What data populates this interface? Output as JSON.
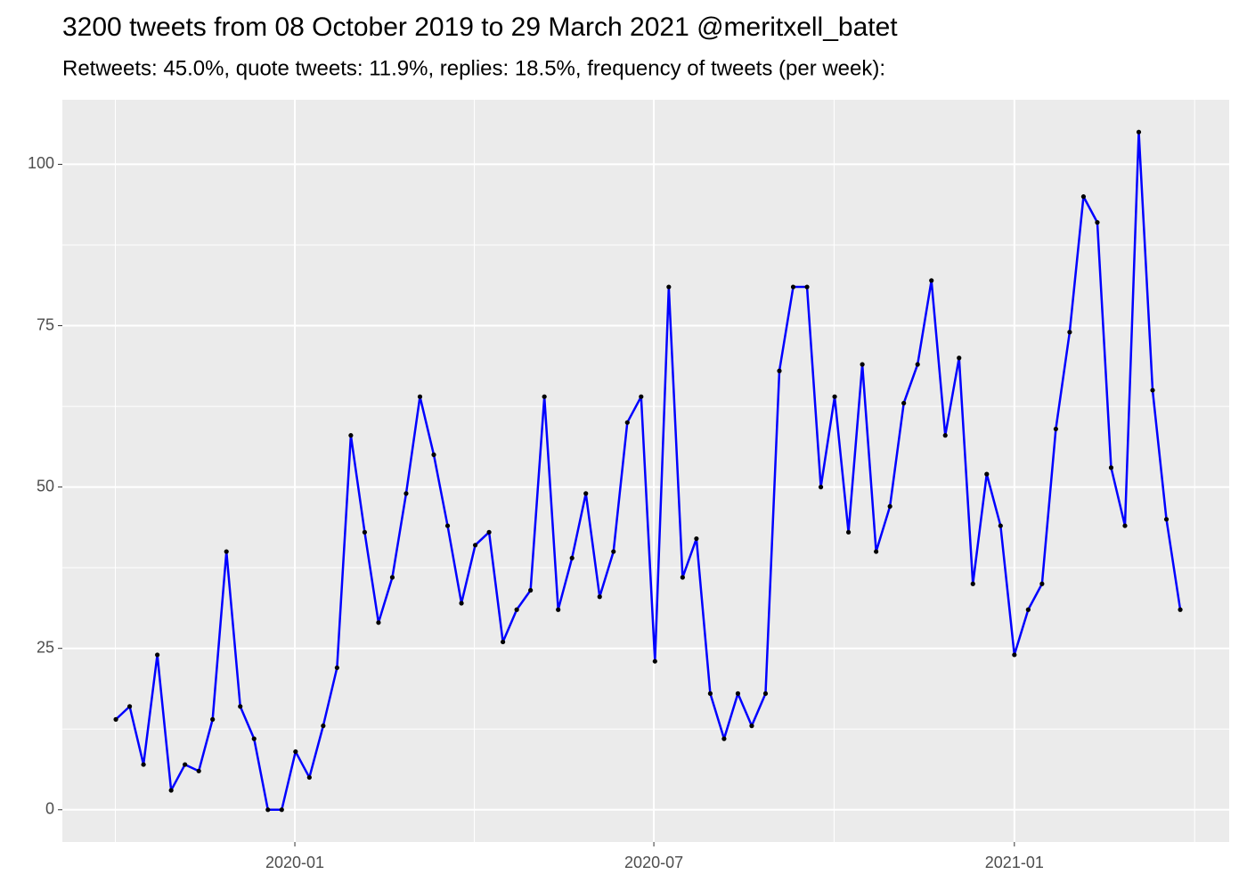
{
  "chart_data": {
    "type": "line",
    "title": "3200 tweets from 08 October 2019 to 29 March 2021 @meritxell_batet",
    "subtitle": "Retweets: 45.0%, quote tweets: 11.9%, replies: 18.5%, frequency of tweets (per week):",
    "categories": [
      null,
      null,
      null,
      null,
      null,
      null,
      null,
      null,
      null,
      null,
      null,
      null,
      null,
      null,
      null,
      null,
      null,
      null,
      null,
      null,
      null,
      null,
      null,
      null,
      null,
      null,
      null,
      null,
      null,
      null,
      null,
      null,
      null,
      null,
      null,
      null,
      null,
      null,
      null,
      null,
      null,
      null,
      null,
      null,
      null,
      null,
      null,
      null,
      null,
      null,
      null,
      null,
      null,
      null,
      null,
      null,
      null,
      null,
      null,
      null,
      null,
      null,
      null,
      null,
      null,
      null,
      null,
      null,
      null,
      null,
      null,
      null,
      null,
      null,
      null,
      null,
      null,
      null
    ],
    "series": [
      {
        "color": "#0000ff",
        "point_color": "#000000",
        "values": [
          14,
          16,
          7,
          24,
          3,
          7,
          6,
          14,
          40,
          16,
          11,
          0,
          0,
          9,
          5,
          13,
          22,
          58,
          43,
          29,
          36,
          49,
          64,
          55,
          44,
          32,
          41,
          43,
          26,
          31,
          34,
          64,
          31,
          39,
          49,
          33,
          40,
          60,
          64,
          23,
          81,
          36,
          42,
          18,
          11,
          18,
          13,
          18,
          68,
          81,
          81,
          50,
          64,
          43,
          69,
          40,
          47,
          63,
          69,
          82,
          58,
          70,
          35,
          52,
          44,
          24,
          31,
          35,
          59,
          74,
          95,
          91,
          53,
          44,
          105,
          65,
          45,
          31
        ]
      }
    ],
    "xlim": [
      -3.87,
      80.54
    ],
    "xticks": [
      {
        "value": 12.95,
        "label": "2020-01"
      },
      {
        "value": 38.92,
        "label": "2020-07"
      },
      {
        "value": 65.0,
        "label": "2021-01"
      }
    ],
    "ylim": [
      -5,
      110
    ],
    "yticks": [
      0,
      25,
      50,
      75,
      100
    ],
    "grid": true
  }
}
